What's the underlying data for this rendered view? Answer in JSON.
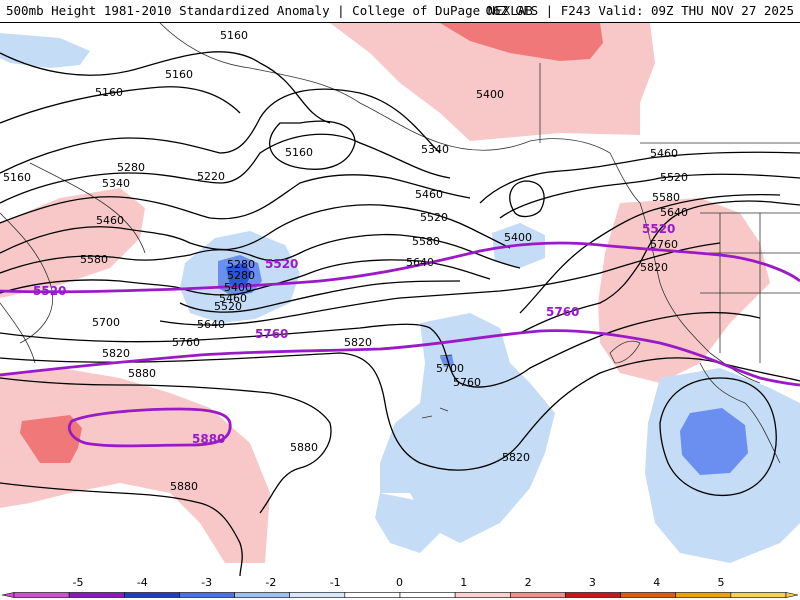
{
  "header": {
    "title": "500mb Height 1981-2010 Standardized Anomaly | College of DuPage NEXLAB",
    "valid": "06Z GFS | F243 Valid: 09Z THU NOV 27 2025"
  },
  "colors": {
    "thick_contour": "#9a1ac8",
    "height_contour": "#000000",
    "coast": "#333333",
    "anomaly_neg_1": "#c4dcf6",
    "anomaly_neg_2": "#6b8ff0",
    "anomaly_neg_3": "#2e55d6",
    "anomaly_pos_1": "#f8c8c8",
    "anomaly_pos_2": "#f07878"
  },
  "colorbar": {
    "ticks": [
      "-5",
      "-4",
      "-3",
      "-2",
      "-1",
      "0",
      "1",
      "2",
      "3",
      "4",
      "5"
    ],
    "colors": [
      "#d050d0",
      "#8e18c0",
      "#1d3fc4",
      "#4872e8",
      "#9cc0f4",
      "#d8e8fa",
      "#ffffff",
      "#ffffff",
      "#fbd0d0",
      "#f58c8c",
      "#c81818",
      "#e05a0a",
      "#f0a000",
      "#f8d050"
    ]
  },
  "contour_labels": [
    "5160",
    "5160",
    "5160",
    "5160",
    "5160",
    "5220",
    "5280",
    "5340",
    "5460",
    "5580",
    "5400",
    "5340",
    "5460",
    "5520",
    "5580",
    "5640",
    "5400",
    "5460",
    "5520",
    "5580",
    "5640",
    "5760",
    "5820",
    "5280",
    "5280",
    "5400",
    "5460",
    "5520",
    "5640",
    "5700",
    "5760",
    "5820",
    "5880",
    "5820",
    "5880",
    "5880",
    "5700",
    "5760",
    "5820"
  ],
  "thick_labels": [
    "5520",
    "5520",
    "5520",
    "5760",
    "5760",
    "5880"
  ]
}
